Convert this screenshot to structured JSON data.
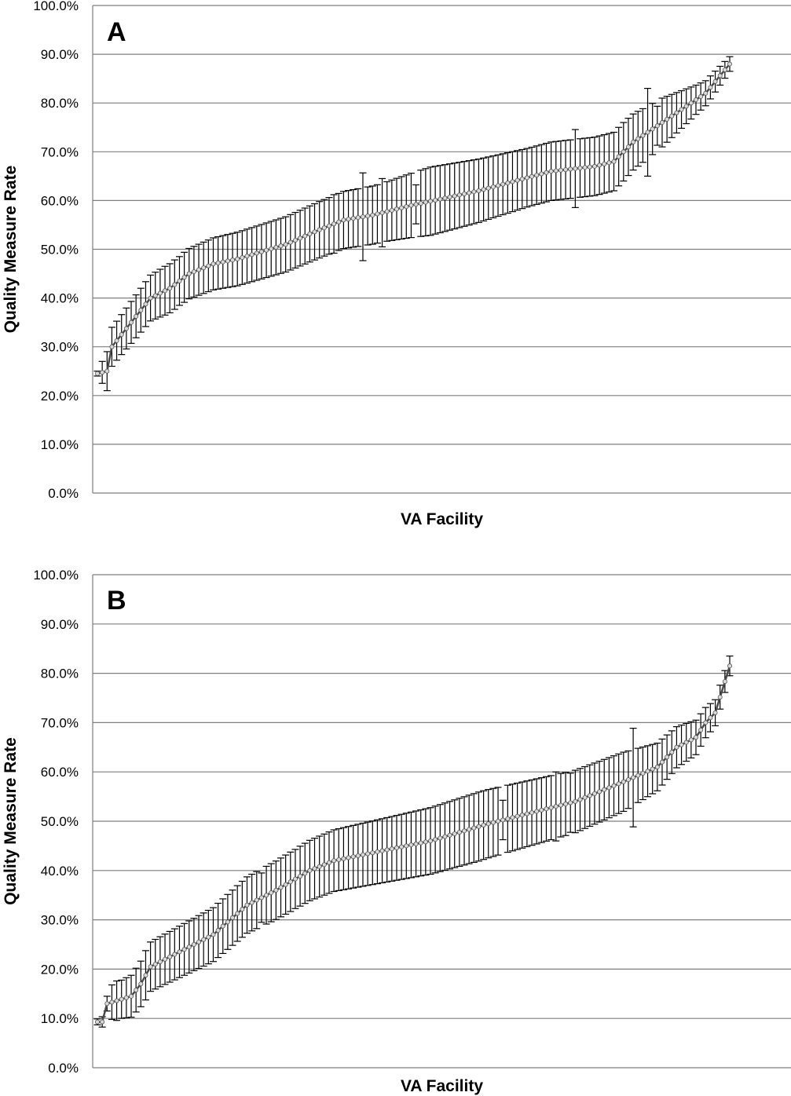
{
  "chart_data": [
    {
      "type": "line",
      "panel_label": "A",
      "xlabel": "VA Facility",
      "ylabel": "Quality Measure Rate",
      "ylim": [
        0,
        100
      ],
      "yticks": [
        "0.0%",
        "10.0%",
        "20.0%",
        "30.0%",
        "40.0%",
        "50.0%",
        "60.0%",
        "70.0%",
        "80.0%",
        "90.0%",
        "100.0%"
      ],
      "grid": true,
      "error_bars": true,
      "knots": [
        [
          1,
          24.5
        ],
        [
          3,
          25
        ],
        [
          4,
          30
        ],
        [
          8,
          35
        ],
        [
          12,
          40
        ],
        [
          16,
          42
        ],
        [
          20,
          45
        ],
        [
          25,
          47
        ],
        [
          30,
          48
        ],
        [
          40,
          51
        ],
        [
          47,
          54
        ],
        [
          52,
          56
        ],
        [
          58,
          57
        ],
        [
          66,
          59
        ],
        [
          80,
          62
        ],
        [
          95,
          66
        ],
        [
          104,
          67
        ],
        [
          108,
          68
        ],
        [
          112,
          72
        ],
        [
          118,
          76
        ],
        [
          124,
          80
        ],
        [
          127,
          82
        ],
        [
          132,
          88
        ]
      ],
      "err_knots": [
        [
          1,
          0.5
        ],
        [
          3,
          4
        ],
        [
          5,
          4
        ],
        [
          15,
          5
        ],
        [
          30,
          5.5
        ],
        [
          60,
          6
        ],
        [
          70,
          7
        ],
        [
          90,
          6
        ],
        [
          110,
          6
        ],
        [
          118,
          5
        ],
        [
          125,
          3
        ],
        [
          132,
          1.5
        ]
      ],
      "err_bumps": [
        [
          18,
          5
        ],
        [
          50,
          6
        ],
        [
          56,
          9
        ],
        [
          60,
          7
        ],
        [
          67,
          4
        ],
        [
          100,
          8
        ],
        [
          115,
          9
        ],
        [
          117,
          4
        ]
      ]
    },
    {
      "type": "line",
      "panel_label": "B",
      "xlabel": "VA Facility",
      "ylabel": "Quality Measure Rate",
      "ylim": [
        0,
        100
      ],
      "yticks": [
        "0.0%",
        "10.0%",
        "20.0%",
        "30.0%",
        "40.0%",
        "50.0%",
        "60.0%",
        "70.0%",
        "80.0%",
        "90.0%",
        "100.0%"
      ],
      "grid": true,
      "error_bars": true,
      "knots": [
        [
          1,
          9.3
        ],
        [
          2,
          9.3
        ],
        [
          3,
          13
        ],
        [
          8,
          14.5
        ],
        [
          10,
          17
        ],
        [
          12,
          20.5
        ],
        [
          18,
          23.5
        ],
        [
          25,
          27
        ],
        [
          32,
          33
        ],
        [
          38,
          36
        ],
        [
          45,
          40
        ],
        [
          50,
          42
        ],
        [
          60,
          44
        ],
        [
          70,
          46
        ],
        [
          82,
          49.5
        ],
        [
          92,
          52
        ],
        [
          100,
          54
        ],
        [
          110,
          58
        ],
        [
          117,
          61
        ],
        [
          121,
          65
        ],
        [
          125,
          67
        ],
        [
          127,
          70
        ],
        [
          129,
          72
        ],
        [
          132,
          81.5
        ]
      ],
      "err_knots": [
        [
          1,
          0.6
        ],
        [
          3,
          1.5
        ],
        [
          4,
          3.5
        ],
        [
          12,
          5
        ],
        [
          40,
          6
        ],
        [
          80,
          7
        ],
        [
          110,
          6
        ],
        [
          125,
          3.5
        ],
        [
          132,
          2
        ]
      ],
      "err_bumps": [
        [
          5,
          4
        ],
        [
          11,
          5
        ],
        [
          35,
          5
        ],
        [
          42,
          6
        ],
        [
          85,
          4
        ],
        [
          96,
          7
        ],
        [
          99,
          6
        ],
        [
          112,
          10
        ]
      ]
    }
  ]
}
